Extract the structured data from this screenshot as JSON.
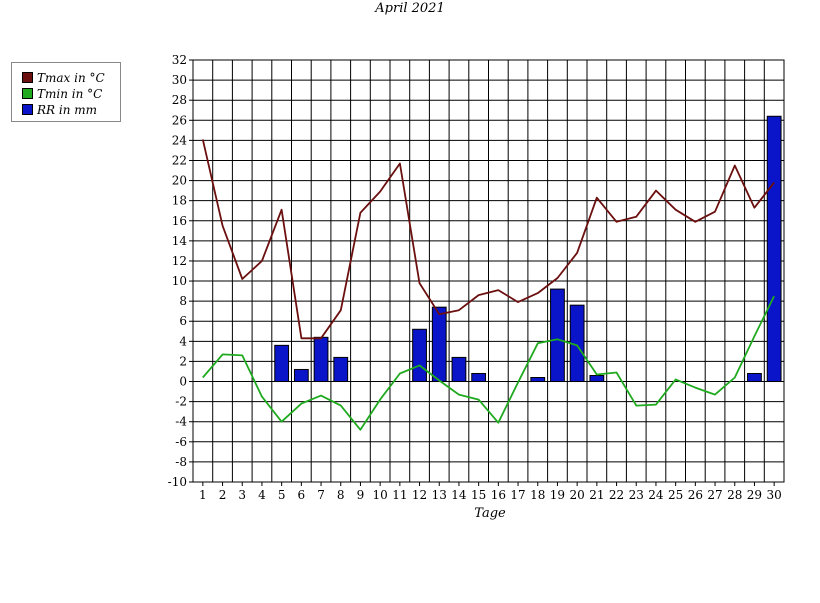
{
  "chart_data": {
    "type": "bar+line",
    "title": "April 2021",
    "xlabel": "Tage",
    "ylabel": "",
    "ylim": [
      -10,
      32
    ],
    "yticks": [
      32,
      30,
      28,
      26,
      24,
      22,
      20,
      18,
      16,
      14,
      12,
      10,
      8,
      6,
      4,
      2,
      0,
      -2,
      -4,
      -6,
      -8,
      -10
    ],
    "categories": [
      "1",
      "2",
      "3",
      "4",
      "5",
      "6",
      "7",
      "8",
      "9",
      "10",
      "11",
      "12",
      "13",
      "14",
      "15",
      "16",
      "17",
      "18",
      "19",
      "20",
      "21",
      "22",
      "23",
      "24",
      "25",
      "26",
      "27",
      "28",
      "29",
      "30"
    ],
    "grid": true,
    "legend_position": "left",
    "series": [
      {
        "name": "Tmax in °C",
        "type": "line",
        "color": "#6b0f0f",
        "values": [
          24.1,
          15.5,
          10.2,
          12.0,
          17.1,
          4.3,
          4.3,
          7.1,
          16.8,
          18.9,
          21.7,
          9.8,
          6.7,
          7.1,
          8.6,
          9.1,
          7.9,
          8.8,
          10.3,
          12.8,
          18.3,
          15.9,
          16.4,
          19.0,
          17.1,
          15.9,
          16.9,
          21.5,
          17.3,
          19.8
        ]
      },
      {
        "name": "Tmin in °C",
        "type": "line",
        "color": "#1faa1f",
        "values": [
          0.4,
          2.7,
          2.6,
          -1.5,
          -4.0,
          -2.2,
          -1.4,
          -2.4,
          -4.8,
          -1.8,
          0.8,
          1.6,
          0.1,
          -1.3,
          -1.8,
          -4.1,
          -0.1,
          3.8,
          4.2,
          3.6,
          0.7,
          0.9,
          -2.4,
          -2.3,
          0.2,
          -0.6,
          -1.3,
          0.4,
          4.5,
          8.5
        ]
      },
      {
        "name": "RR in mm",
        "type": "bar",
        "color": "#0a14c8",
        "values": [
          0,
          0,
          0,
          0,
          3.6,
          1.2,
          4.4,
          2.4,
          0,
          0,
          0,
          5.2,
          7.4,
          2.4,
          0.8,
          0,
          0,
          0.4,
          9.2,
          7.6,
          0.6,
          0,
          0,
          0,
          0,
          0,
          0,
          0,
          0.8,
          26.4
        ]
      }
    ]
  }
}
